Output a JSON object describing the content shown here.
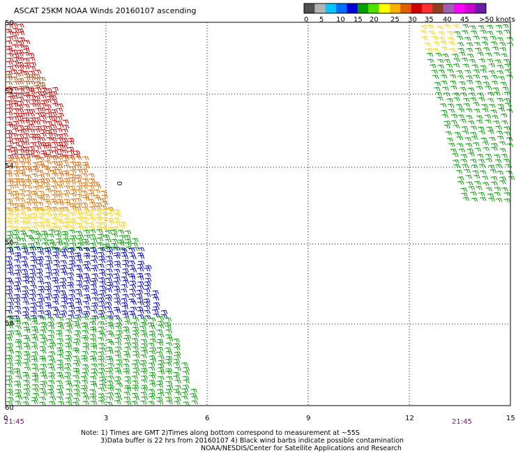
{
  "title": "ASCAT 25KM NOAA Winds 20160107 ascending",
  "colorbar": {
    "colors": [
      "#505050",
      "#b4b4b4",
      "#00c8ff",
      "#0070ff",
      "#0000d8",
      "#00a000",
      "#50e000",
      "#ffff00",
      "#ffb000",
      "#e06000",
      "#d00000",
      "#ff3030",
      "#904020",
      "#a060b0",
      "#ff00ff",
      "#d000d0",
      "#6a1ca8"
    ],
    "labels": [
      "0",
      "5",
      "10",
      "15",
      "20",
      "25",
      "30",
      "35",
      "40",
      "45",
      ">50 knots"
    ]
  },
  "y_labels": [
    "50",
    "52",
    "54",
    "56",
    "58",
    "60"
  ],
  "x_labels": [
    "0",
    "3",
    "6",
    "9",
    "12",
    "15"
  ],
  "times": {
    "left": "21:45",
    "right": "21:45"
  },
  "marker": "0",
  "notes": [
    "Note: 1) Times are GMT 2)Times along bottom correspond to measurement at ~55S",
    "3)Data buffer is 22 hrs from 20160107 4) Black wind barbs indicate possible contamination",
    "NOAA/NESDIS/Center for Satellite Applications and Research"
  ]
}
